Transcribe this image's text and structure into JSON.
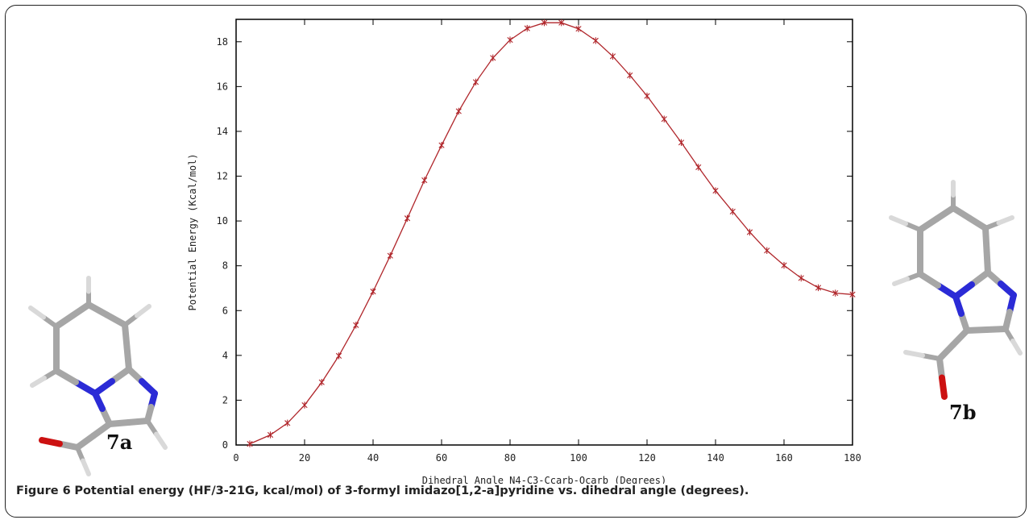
{
  "caption": {
    "label": "Figure 6",
    "text": "Potential energy (HF/3-21G, kcal/mol) of 3-formyl imidazo[1,2-a]pyridine vs. dihedral angle (degrees)."
  },
  "molecules": {
    "left_label": "7a",
    "right_label": "7b"
  },
  "colors": {
    "series": "#b0262b",
    "carbon": "#a6a6a6",
    "nitrogen": "#2b2bd6",
    "oxygen": "#cc1111",
    "hydrogen": "#d9d9d9"
  },
  "chart_data": {
    "type": "line",
    "xlabel": "Dihedral Angle N4-C3-Ccarb-Ocarb (Degrees)",
    "ylabel": "Potential Energy (Kcal/mol)",
    "xlim": [
      0,
      180
    ],
    "ylim": [
      0,
      19
    ],
    "xticks": [
      0,
      20,
      40,
      60,
      80,
      100,
      120,
      140,
      160,
      180
    ],
    "yticks": [
      0,
      2,
      4,
      6,
      8,
      10,
      12,
      14,
      16,
      18
    ],
    "grid": false,
    "series": [
      {
        "x": [
          4,
          10,
          15,
          20,
          25,
          30,
          35,
          40,
          45,
          50,
          55,
          60,
          65,
          70,
          75,
          80,
          85,
          90,
          95,
          100,
          105,
          110,
          115,
          120,
          125,
          130,
          135,
          140,
          145,
          150,
          155,
          160,
          165,
          170,
          175,
          180
        ],
        "y": [
          0.05,
          0.45,
          0.98,
          1.78,
          2.8,
          3.98,
          5.35,
          6.85,
          8.45,
          10.12,
          11.82,
          13.38,
          14.9,
          16.2,
          17.28,
          18.08,
          18.6,
          18.85,
          18.85,
          18.58,
          18.05,
          17.35,
          16.5,
          15.58,
          14.55,
          13.5,
          12.4,
          11.35,
          10.42,
          9.5,
          8.68,
          8.02,
          7.45,
          7.02,
          6.78,
          6.72
        ]
      }
    ]
  }
}
